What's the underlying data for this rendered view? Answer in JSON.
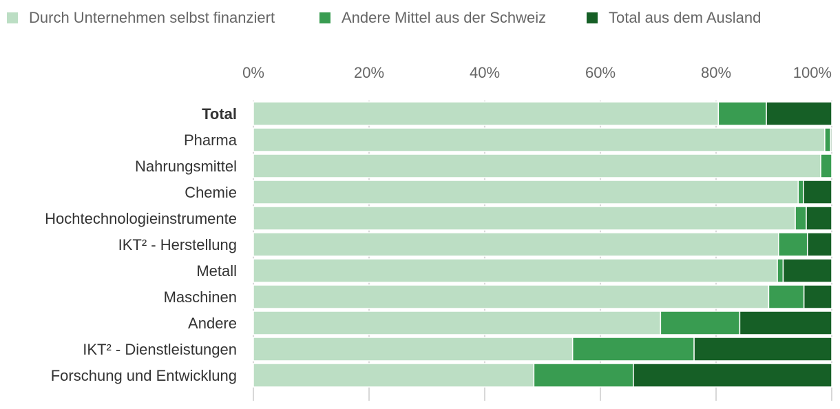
{
  "chart_data": {
    "type": "bar",
    "orientation": "horizontal",
    "stacked": "percent",
    "title": "",
    "xlabel": "",
    "ylabel": "",
    "xlim": [
      0,
      100
    ],
    "x_ticks": [
      "0%",
      "20%",
      "40%",
      "60%",
      "80%",
      "100%"
    ],
    "legend_position": "top-left",
    "grid": true,
    "categories": [
      "Total",
      "Pharma",
      "Nahrungsmittel",
      "Chemie",
      "Hochtechnologieinstrumente",
      "IKT² - Herstellung",
      "Metall",
      "Maschinen",
      "Andere",
      "IKT² - Dienstleistungen",
      "Forschung und Entwicklung"
    ],
    "bold_categories": [
      "Total"
    ],
    "series": [
      {
        "name": "Durch Unternehmen selbst finanziert",
        "color": "#bcdec4",
        "values": [
          80.4,
          98.8,
          98.1,
          94.2,
          93.7,
          90.8,
          90.6,
          89.1,
          70.4,
          55.2,
          48.5
        ]
      },
      {
        "name": "Andere Mittel aus der Schweiz",
        "color": "#399c51",
        "values": [
          8.3,
          1.0,
          1.9,
          0.9,
          1.9,
          5.0,
          1.0,
          6.1,
          13.7,
          21.0,
          17.2
        ]
      },
      {
        "name": "Total aus dem Ausland",
        "color": "#165f26",
        "values": [
          11.3,
          0.2,
          0.0,
          4.9,
          4.4,
          4.2,
          8.4,
          4.8,
          15.9,
          23.8,
          34.3
        ]
      }
    ]
  }
}
